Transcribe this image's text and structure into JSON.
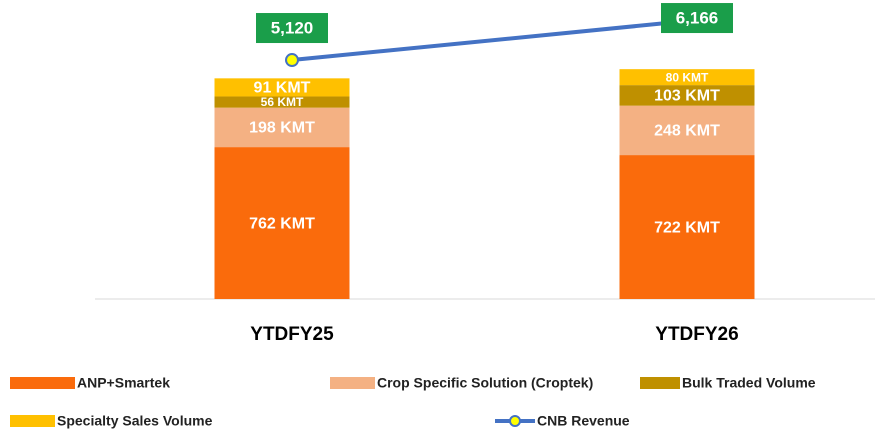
{
  "chart_data": {
    "type": "bar",
    "stacked": true,
    "categories": [
      "YTDFY25",
      "YTDFY26"
    ],
    "ylim": [
      0,
      1500
    ],
    "y2lim": [
      -1130,
      6690
    ],
    "series": [
      {
        "name": "ANP+Smartek",
        "color": "#fa6b0c",
        "values": [
          762,
          722
        ],
        "value_labels": [
          "762 KMT",
          "722 KMT"
        ]
      },
      {
        "name": "Crop Specific Solution (Croptek)",
        "color": "#f4b183",
        "values": [
          198,
          248
        ],
        "value_labels": [
          "198 KMT",
          "248 KMT"
        ]
      },
      {
        "name": "Bulk Traded Volume",
        "color": "#bf9000",
        "values": [
          56,
          103
        ],
        "value_labels": [
          "56 KMT",
          "103 KMT"
        ]
      },
      {
        "name": "Specialty Sales Volume",
        "color": "#ffc000",
        "values": [
          91,
          80
        ],
        "value_labels": [
          "91 KMT",
          "80 KMT"
        ]
      },
      {
        "name": "CNB Revenue",
        "type": "line",
        "axis": "y2",
        "color": "#4472c4",
        "marker_color": "#ffff00",
        "label_color": "#1a9e4a",
        "values": [
          5120,
          6166
        ],
        "value_labels": [
          "5,120",
          "6,166"
        ]
      }
    ]
  }
}
